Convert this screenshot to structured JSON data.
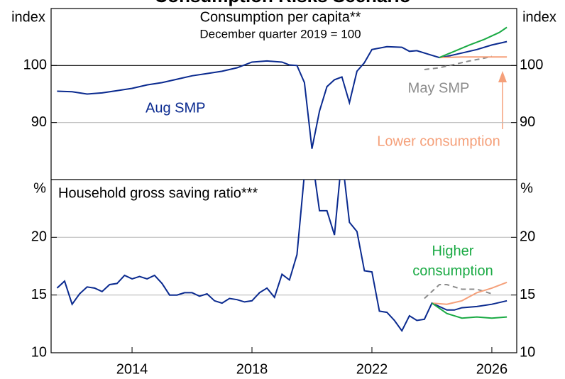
{
  "title": "Consumption Risks Scenario",
  "chart_data": [
    {
      "type": "line",
      "title": "Consumption per capita**",
      "subtitle": "December quarter 2019 = 100",
      "ylabel": "index",
      "y2label": "index",
      "xlim": [
        2011.3,
        2026.83
      ],
      "ylim": [
        80,
        110
      ],
      "yticks": [
        90,
        100
      ],
      "grid": true,
      "series": [
        {
          "name": "Aug SMP",
          "color": "#0a2a8f",
          "dash": false,
          "x": [
            2011.5,
            2012,
            2012.5,
            2013,
            2013.5,
            2014,
            2014.5,
            2015,
            2015.5,
            2016,
            2016.5,
            2017,
            2017.5,
            2018,
            2018.5,
            2019,
            2019.25,
            2019.5,
            2019.75,
            2020,
            2020.25,
            2020.5,
            2020.75,
            2021,
            2021.25,
            2021.5,
            2021.75,
            2022,
            2022.5,
            2023,
            2023.25,
            2023.5,
            2024,
            2024.25,
            2024.5,
            2025,
            2025.5,
            2026,
            2026.5
          ],
          "values": [
            95.5,
            95.4,
            95.0,
            95.2,
            95.6,
            96.0,
            96.6,
            97.0,
            97.6,
            98.2,
            98.6,
            99.0,
            99.6,
            100.6,
            100.8,
            100.6,
            100.1,
            100.0,
            97.0,
            85.4,
            92.0,
            96.3,
            97.5,
            98.0,
            93.5,
            99.0,
            100.5,
            102.8,
            103.3,
            103.2,
            102.5,
            102.6,
            101.8,
            101.4,
            101.6,
            102.2,
            102.8,
            103.6,
            104.2
          ]
        },
        {
          "name": "May SMP",
          "color": "#8c8c8c",
          "dash": true,
          "x": [
            2023.75,
            2024.25,
            2024.75,
            2025.25,
            2025.75,
            2026
          ],
          "values": [
            99.3,
            99.6,
            100.2,
            100.8,
            101.3,
            101.6
          ]
        },
        {
          "name": "Lower consumption",
          "color": "#f5a07a",
          "dash": false,
          "x": [
            2024.25,
            2025,
            2025.5,
            2026,
            2026.5
          ],
          "values": [
            101.4,
            101.5,
            101.5,
            101.5,
            101.5
          ]
        },
        {
          "color": "#1aaa44",
          "dash": false,
          "x": [
            2024.25,
            2024.75,
            2025.25,
            2025.75,
            2026.25,
            2026.5
          ],
          "values": [
            101.4,
            102.5,
            103.6,
            104.6,
            105.8,
            106.7
          ]
        }
      ]
    },
    {
      "type": "line",
      "title": "Household gross saving ratio***",
      "ylabel": "%",
      "y2label": "%",
      "xlim": [
        2011.3,
        2026.83
      ],
      "ylim": [
        10,
        25
      ],
      "yticks": [
        10,
        15,
        20
      ],
      "xticks": [
        2014,
        2018,
        2022,
        2026
      ],
      "grid": true,
      "series": [
        {
          "color": "#0a2a8f",
          "dash": false,
          "x": [
            2011.5,
            2011.75,
            2012,
            2012.25,
            2012.5,
            2012.75,
            2013,
            2013.25,
            2013.5,
            2013.75,
            2014,
            2014.25,
            2014.5,
            2014.75,
            2015,
            2015.25,
            2015.5,
            2015.75,
            2016,
            2016.25,
            2016.5,
            2016.75,
            2017,
            2017.25,
            2017.5,
            2017.75,
            2018,
            2018.25,
            2018.5,
            2018.75,
            2019,
            2019.25,
            2019.5,
            2019.75,
            2020,
            2020.25,
            2020.5,
            2020.75,
            2021,
            2021.25,
            2021.5,
            2021.75,
            2022,
            2022.25,
            2022.5,
            2022.75,
            2023,
            2023.25,
            2023.5,
            2023.75,
            2024,
            2024.25,
            2024.5,
            2024.75,
            2025,
            2025.5,
            2026,
            2026.5
          ],
          "values": [
            15.6,
            16.2,
            14.2,
            15.1,
            15.7,
            15.6,
            15.3,
            15.9,
            16.0,
            16.7,
            16.4,
            16.6,
            16.4,
            16.7,
            16.0,
            15.0,
            15.0,
            15.2,
            15.2,
            14.9,
            15.1,
            14.5,
            14.3,
            14.7,
            14.6,
            14.4,
            14.5,
            15.2,
            15.6,
            14.8,
            16.8,
            16.3,
            18.5,
            25.5,
            27,
            22.3,
            22.3,
            20.2,
            27,
            21.3,
            20.5,
            17.1,
            17.0,
            13.6,
            13.5,
            12.8,
            11.9,
            13.2,
            12.8,
            12.9,
            14.3,
            14.0,
            13.7,
            13.7,
            13.9,
            14.0,
            14.2,
            14.5
          ]
        },
        {
          "color": "#8c8c8c",
          "dash": true,
          "x": [
            2023.75,
            2024.25,
            2024.5,
            2025,
            2025.5,
            2026
          ],
          "values": [
            14.7,
            15.9,
            15.9,
            15.5,
            15.5,
            15.1
          ]
        },
        {
          "color": "#f5a07a",
          "dash": false,
          "x": [
            2024,
            2024.5,
            2025,
            2025.5,
            2026,
            2026.5
          ],
          "values": [
            14.3,
            14.2,
            14.5,
            15.2,
            15.6,
            16.1
          ]
        },
        {
          "name": "Higher consumption",
          "color": "#1aaa44",
          "dash": false,
          "x": [
            2024,
            2024.5,
            2025,
            2025.5,
            2026,
            2026.5
          ],
          "values": [
            14.3,
            13.4,
            13.0,
            13.1,
            13.0,
            13.1
          ]
        }
      ]
    }
  ]
}
